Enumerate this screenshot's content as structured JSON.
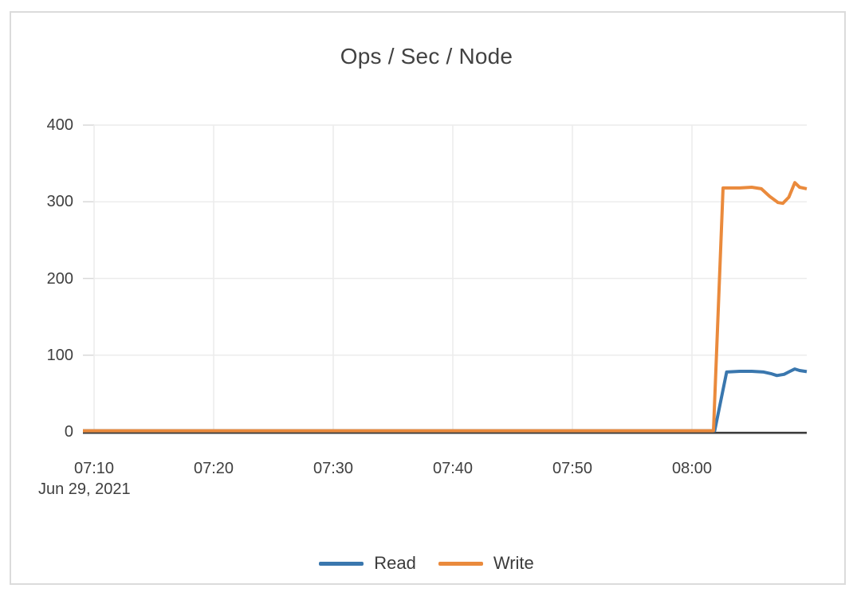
{
  "chart_data": {
    "type": "line",
    "title": "Ops / Sec / Node",
    "grid": true,
    "legend_position": "bottom",
    "x_axis": {
      "date_label": "Jun 29, 2021",
      "tick_labels": [
        "07:10",
        "07:20",
        "07:30",
        "07:40",
        "07:50",
        "08:00"
      ],
      "tick_minutes": [
        0,
        10,
        20,
        30,
        40,
        50
      ],
      "domain_minutes": [
        0,
        59.6
      ]
    },
    "y_axis": {
      "tick_labels": [
        "0",
        "100",
        "200",
        "300",
        "400"
      ],
      "tick_values": [
        0,
        100,
        200,
        300,
        400
      ],
      "range": [
        0,
        400
      ]
    },
    "series": [
      {
        "name": "Read",
        "color": "#3A77AE",
        "points": [
          [
            0,
            0
          ],
          [
            10,
            0
          ],
          [
            20,
            0
          ],
          [
            30,
            0
          ],
          [
            40,
            0
          ],
          [
            50,
            0
          ],
          [
            51.9,
            0
          ],
          [
            52.9,
            78
          ],
          [
            54,
            79
          ],
          [
            55,
            79
          ],
          [
            56,
            78
          ],
          [
            56.6,
            76
          ],
          [
            57.1,
            73.5
          ],
          [
            57.7,
            75
          ],
          [
            58.2,
            79
          ],
          [
            58.6,
            82
          ],
          [
            59,
            80
          ],
          [
            59.6,
            78.5
          ]
        ]
      },
      {
        "name": "Write",
        "color": "#EA8A3C",
        "points": [
          [
            0,
            0
          ],
          [
            10,
            0
          ],
          [
            20,
            0
          ],
          [
            30,
            0
          ],
          [
            40,
            0
          ],
          [
            50,
            0
          ],
          [
            51.8,
            0
          ],
          [
            52.6,
            318
          ],
          [
            54,
            318
          ],
          [
            55,
            319
          ],
          [
            55.8,
            317
          ],
          [
            56.5,
            307
          ],
          [
            57.2,
            299
          ],
          [
            57.6,
            298
          ],
          [
            58.1,
            306
          ],
          [
            58.6,
            325
          ],
          [
            59,
            319
          ],
          [
            59.6,
            317
          ]
        ]
      }
    ],
    "colors": {
      "grid": "#ececec",
      "tick_mark": "#d9d9d9",
      "axis": "#3c3c3c",
      "text": "#3f3f3f",
      "panel_border": "#dbdbdb"
    }
  }
}
